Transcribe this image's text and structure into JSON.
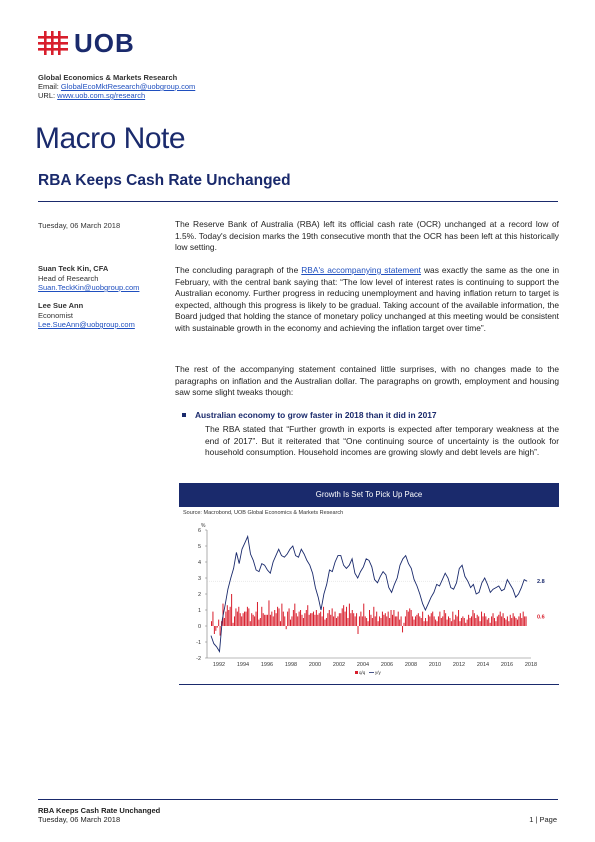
{
  "brand": {
    "logo_text": "UOB",
    "logo_color": "#1a2a6c",
    "mark_color": "#d81e2c"
  },
  "header": {
    "dept": "Global Economics & Markets Research",
    "email_label": "Email: ",
    "email": "GlobalEcoMktResearch@uobgroup.com",
    "url_label": "URL: ",
    "url": "www.uob.com.sg/research"
  },
  "title": "Macro Note",
  "subtitle": "RBA Keeps Cash Rate Unchanged",
  "sidebar": {
    "date": "Tuesday, 06 March 2018",
    "author1": {
      "name": "Suan Teck Kin, CFA",
      "role": "Head of Research",
      "email": "Suan.TeckKin@uobgroup.com"
    },
    "author2": {
      "name": "Lee Sue Ann",
      "role": "Economist",
      "email": "Lee.SueAnn@uobgroup.com"
    }
  },
  "body": {
    "p1": "The Reserve Bank of Australia (RBA) left its official cash rate (OCR) unchanged at a record low of 1.5%. Today's decision marks the 19th consecutive month that the OCR has been left at this historically low setting.",
    "p2_a": "The concluding paragraph of the ",
    "p2_link": "RBA's accompanying statement",
    "p2_b": " was exactly the same as the one in February, with the central bank saying that: “The low level of interest rates is continuing to support the Australian economy. Further progress in reducing unemployment and having inflation return to target is expected, although this progress is likely to be gradual. Taking account of the available information, the Board judged that holding the stance of monetary policy unchanged at this meeting would be consistent with sustainable growth in the economy and achieving the inflation target over time”.",
    "p3": "The rest of the accompanying statement contained little surprises, with no changes made to the paragraphs on inflation and the Australian dollar. The paragraphs on growth, employment and housing saw some slight tweaks though:",
    "bullet_title": "Australian economy to grow faster in 2018 than it did in 2017",
    "bullet_text": "The RBA stated that “Further growth in exports is expected after temporary weakness at the end of 2017”. But it reiterated that “One continuing source of uncertainty is the outlook for household consumption. Household incomes are growing slowly and debt levels are high”."
  },
  "chart": {
    "title": "Growth Is Set To Pick Up Pace",
    "source": "Source: Macrobond, UOB Global Economics & Markets Research"
  },
  "chart_data": {
    "type": "bar",
    "ylabel": "%",
    "ylim": [
      -2,
      6
    ],
    "yticks": [
      -2,
      -1,
      0,
      1,
      2,
      3,
      4,
      5,
      6
    ],
    "xticks": [
      "1992",
      "1994",
      "1996",
      "1998",
      "2000",
      "2002",
      "2004",
      "2006",
      "2008",
      "2010",
      "2012",
      "2014",
      "2016",
      "2018"
    ],
    "x_range": [
      1991,
      2018
    ],
    "series": [
      {
        "name": "q/q",
        "kind": "bar",
        "color": "#d81e2c",
        "last_label": "0.6",
        "values": [
          0.3,
          0.9,
          -0.5,
          -0.3,
          -0.1,
          0.4,
          -0.6,
          0.3,
          1.4,
          0.5,
          0.9,
          1.3,
          1.0,
          1.2,
          2.0,
          0.2,
          0.6,
          1.1,
          0.9,
          1.2,
          0.8,
          0.6,
          0.8,
          0.9,
          0.9,
          1.2,
          1.1,
          0.3,
          0.8,
          0.7,
          0.6,
          0.9,
          1.5,
          0.4,
          0.5,
          1.2,
          0.8,
          0.7,
          0.7,
          0.7,
          1.6,
          0.7,
          0.9,
          0.6,
          1.0,
          0.8,
          1.2,
          1.1,
          0.3,
          1.4,
          0.9,
          0.6,
          -0.2,
          0.9,
          1.1,
          0.4,
          0.6,
          1.0,
          1.4,
          0.8,
          0.6,
          0.9,
          1.0,
          0.7,
          0.5,
          0.8,
          1.0,
          1.3,
          0.7,
          0.8,
          0.8,
          0.9,
          0.7,
          1.0,
          0.7,
          0.8,
          0.9,
          0.6,
          1.2,
          0.4,
          0.5,
          0.8,
          1.0,
          0.7,
          1.1,
          0.6,
          0.9,
          0.5,
          0.6,
          0.8,
          0.8,
          1.1,
          1.3,
          0.9,
          1.2,
          0.5,
          1.4,
          0.8,
          1.0,
          0.8,
          0.6,
          0.8,
          -0.5,
          0.6,
          0.9,
          0.6,
          1.4,
          0.6,
          0.5,
          0.3,
          1.0,
          0.7,
          0.5,
          1.2,
          0.6,
          0.9,
          0.3,
          0.6,
          0.5,
          0.9,
          0.7,
          0.8,
          0.6,
          0.9,
          0.5,
          1.0,
          0.7,
          1.0,
          0.6,
          0.6,
          0.9,
          0.4,
          0.6,
          -0.4,
          0.2,
          0.6,
          1.0,
          0.9,
          1.1,
          1.0,
          0.6,
          0.4,
          0.6,
          0.7,
          0.8,
          0.6,
          0.5,
          0.9,
          0.3,
          0.5,
          0.3,
          0.7,
          0.6,
          0.8,
          0.9,
          0.6,
          0.4,
          0.3,
          0.6,
          0.9,
          0.5,
          0.6,
          1.0,
          0.8,
          0.4,
          0.6,
          0.5,
          0.3,
          0.9,
          0.4,
          0.7,
          0.6,
          1.0,
          0.3,
          0.5,
          0.6,
          0.5,
          0.2,
          0.4,
          0.7,
          0.5,
          0.6,
          1.0,
          0.8,
          0.5,
          0.7,
          0.6,
          0.3,
          0.9,
          0.6,
          0.8,
          0.6,
          0.4,
          0.5,
          0.2,
          0.6,
          0.8,
          0.5,
          0.3,
          0.6,
          0.7,
          0.9,
          0.6,
          0.8,
          0.5,
          0.4,
          0.6,
          0.3,
          0.7,
          0.5,
          0.8,
          0.6,
          0.5,
          0.4,
          0.6,
          0.8,
          0.5,
          0.9,
          0.6,
          0.6
        ]
      },
      {
        "name": "y/y",
        "kind": "line",
        "color": "#1a2a6c",
        "last_label": "2.8",
        "values": [
          -0.6,
          -1.1,
          -1.3,
          -1.6,
          0.4,
          1.3,
          2.3,
          3.0,
          3.6,
          4.6,
          3.9,
          4.8,
          5.2,
          5.6,
          4.5,
          4.1,
          3.5,
          3.4,
          3.9,
          3.8,
          3.5,
          3.3,
          4.0,
          4.4,
          4.8,
          4.4,
          4.3,
          4.5,
          4.8,
          5.0,
          4.4,
          4.3,
          4.8,
          4.5,
          4.1,
          3.8,
          3.3,
          2.4,
          1.8,
          1.0,
          2.0,
          2.6,
          3.5,
          3.4,
          4.0,
          4.4,
          4.4,
          3.8,
          3.6,
          3.8,
          4.2,
          3.3,
          3.0,
          3.4,
          3.7,
          4.2,
          4.1,
          3.7,
          2.9,
          2.7,
          3.1,
          3.4,
          3.2,
          2.4,
          2.1,
          2.6,
          3.0,
          3.8,
          4.2,
          4.4,
          3.9,
          3.6,
          2.9,
          2.5,
          2.0,
          1.4,
          1.0,
          1.4,
          1.8,
          2.1,
          2.6,
          2.5,
          2.9,
          3.3,
          3.0,
          2.4,
          2.3,
          2.7,
          3.6,
          3.8,
          3.1,
          2.8,
          2.4,
          2.6,
          2.0,
          2.1,
          2.7,
          3.0,
          2.6,
          2.1,
          2.3,
          2.4,
          2.5,
          2.2,
          2.3,
          2.9,
          2.6,
          2.3,
          1.8,
          2.0,
          2.4,
          2.9,
          2.8
        ]
      }
    ],
    "legend": "bottom-center"
  }
}
